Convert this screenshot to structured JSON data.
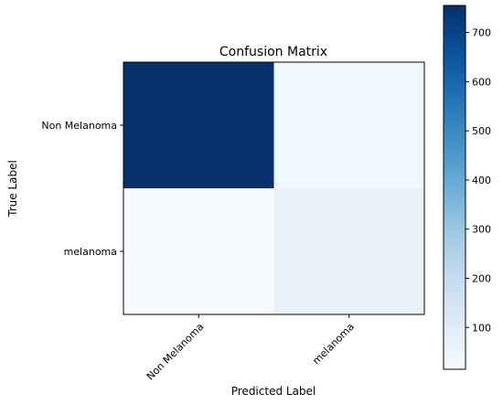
{
  "chart_data": {
    "type": "heatmap",
    "title": "Confusion Matrix",
    "xlabel": "Predicted Label",
    "ylabel": "True Label",
    "x_categories": [
      "Non Melanoma",
      "melanoma"
    ],
    "y_categories": [
      "Non Melanoma",
      "melanoma"
    ],
    "values": [
      [
        755,
        40
      ],
      [
        20,
        70
      ]
    ],
    "colormap": "Blues",
    "colorbar": {
      "min": 15,
      "max": 755,
      "ticks": [
        100,
        200,
        300,
        400,
        500,
        600,
        700
      ],
      "tick_labels": [
        "100",
        "200",
        "300",
        "400",
        "500",
        "600",
        "700"
      ]
    },
    "grid": false
  }
}
